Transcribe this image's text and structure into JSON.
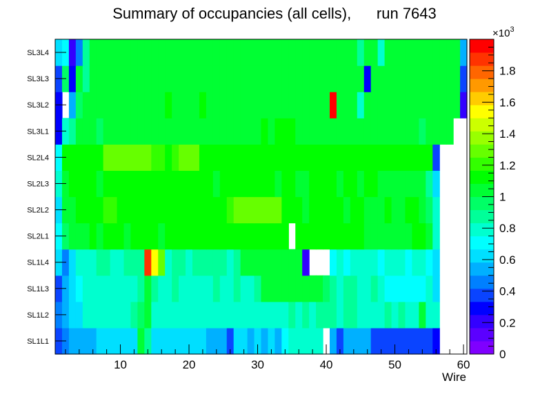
{
  "chart_data": {
    "type": "heatmap",
    "title": "Summary of occupancies (all cells),      run 7643",
    "xlabel": "Wire",
    "ylabel": "",
    "xlim": [
      0.5,
      60.5
    ],
    "x_ticks": [
      "10",
      "20",
      "30",
      "40",
      "50",
      "60"
    ],
    "layers": [
      "SL1L1",
      "SL1L2",
      "SL1L3",
      "SL1L4",
      "SL2L1",
      "SL2L2",
      "SL2L3",
      "SL2L4",
      "SL3L1",
      "SL3L2",
      "SL3L3",
      "SL3L4"
    ],
    "z_range": [
      0,
      2000
    ],
    "z_multiplier_label": "×10",
    "z_multiplier_exp": "3",
    "z_tick_labels": [
      "0",
      "0.2",
      "0.4",
      "0.6",
      "0.8",
      "1",
      "1.2",
      "1.4",
      "1.6",
      "1.8"
    ],
    "palette": [
      "#7f00ff",
      "#5b00ff",
      "#3300ff",
      "#0000ff",
      "#0a44ff",
      "#0080ff",
      "#00b0ff",
      "#00dfff",
      "#00ffff",
      "#00ffcf",
      "#00ff99",
      "#00ff66",
      "#00ff33",
      "#00ff00",
      "#33ff00",
      "#66ff00",
      "#99ff00",
      "#ccff00",
      "#ffff00",
      "#ffcc00",
      "#ff9900",
      "#ff6600",
      "#ff3300",
      "#ff0000"
    ],
    "z": [
      [
        350,
        420,
        500,
        500,
        500,
        500,
        600,
        600,
        600,
        600,
        600,
        600,
        1000,
        900,
        600,
        600,
        600,
        600,
        600,
        600,
        600,
        600,
        500,
        500,
        500,
        400,
        600,
        600,
        500,
        600,
        500,
        600,
        500,
        700,
        800,
        800,
        800,
        800,
        800,
        0,
        500,
        400,
        500,
        500,
        500,
        500,
        400,
        400,
        400,
        400,
        400,
        400,
        400,
        400,
        400,
        300,
        0,
        0,
        0,
        0
      ],
      [
        450,
        550,
        650,
        650,
        750,
        750,
        750,
        800,
        800,
        800,
        800,
        850,
        950,
        1050,
        800,
        750,
        800,
        800,
        800,
        800,
        800,
        800,
        800,
        800,
        800,
        800,
        800,
        800,
        800,
        800,
        800,
        800,
        800,
        800,
        900,
        800,
        900,
        800,
        850,
        900,
        850,
        800,
        850,
        850,
        800,
        800,
        750,
        800,
        850,
        800,
        850,
        800,
        800,
        1000,
        800,
        800,
        0,
        0,
        0,
        0
      ],
      [
        400,
        550,
        650,
        700,
        800,
        800,
        800,
        800,
        800,
        800,
        800,
        800,
        900,
        1000,
        850,
        800,
        800,
        850,
        800,
        800,
        800,
        750,
        800,
        850,
        800,
        800,
        850,
        800,
        800,
        850,
        1000,
        1000,
        1000,
        1000,
        1000,
        1000,
        1000,
        1000,
        1000,
        950,
        850,
        800,
        850,
        900,
        800,
        800,
        850,
        800,
        700,
        700,
        700,
        700,
        700,
        700,
        750,
        600,
        0,
        0,
        0,
        0
      ],
      [
        650,
        450,
        600,
        800,
        800,
        800,
        850,
        850,
        800,
        800,
        850,
        900,
        850,
        1900,
        1500,
        1250,
        800,
        900,
        850,
        800,
        850,
        850,
        900,
        850,
        850,
        800,
        850,
        1000,
        1050,
        1050,
        1050,
        1050,
        1050,
        1050,
        1050,
        1050,
        200,
        0,
        0,
        0,
        700,
        750,
        700,
        800,
        800,
        750,
        800,
        700,
        800,
        750,
        800,
        700,
        800,
        750,
        700,
        650,
        0,
        0,
        0,
        0
      ],
      [
        700,
        950,
        1050,
        1050,
        1050,
        1100,
        1050,
        1150,
        1150,
        1150,
        1050,
        1150,
        1150,
        1150,
        1100,
        1050,
        1150,
        1150,
        1100,
        1150,
        1150,
        1150,
        1150,
        1100,
        1150,
        1150,
        1150,
        1150,
        1150,
        1150,
        1150,
        1150,
        1150,
        1150,
        0,
        1150,
        1150,
        1150,
        1150,
        1150,
        1150,
        1100,
        1150,
        1150,
        1100,
        1050,
        1050,
        1050,
        1050,
        1050,
        1050,
        1050,
        1100,
        1100,
        1050,
        800,
        0,
        0,
        0,
        0
      ],
      [
        600,
        1050,
        1050,
        1100,
        1150,
        1150,
        1150,
        1200,
        1200,
        1150,
        1150,
        1100,
        1100,
        1100,
        1100,
        1100,
        1100,
        1100,
        1100,
        1150,
        1100,
        1100,
        1100,
        1150,
        1100,
        1200,
        1300,
        1250,
        1250,
        1250,
        1250,
        1250,
        1250,
        1150,
        1100,
        1100,
        1050,
        1100,
        1150,
        1150,
        1100,
        1100,
        1050,
        1100,
        1100,
        1050,
        1050,
        1050,
        1100,
        1050,
        1050,
        1100,
        1100,
        1050,
        950,
        750,
        0,
        0,
        0,
        0
      ],
      [
        800,
        1050,
        1100,
        1100,
        1100,
        1100,
        1050,
        1150,
        1150,
        1150,
        1150,
        1100,
        1100,
        1150,
        1100,
        1150,
        1100,
        1100,
        1100,
        1100,
        1100,
        1100,
        1100,
        1050,
        1100,
        1100,
        1150,
        1150,
        1150,
        1100,
        1100,
        1150,
        1050,
        1100,
        1100,
        1050,
        1050,
        1100,
        1100,
        1100,
        1100,
        1050,
        1100,
        1100,
        1050,
        1100,
        1100,
        1050,
        1050,
        1050,
        1050,
        1050,
        1050,
        1050,
        900,
        600,
        0,
        0,
        0,
        0
      ],
      [
        700,
        1100,
        1100,
        1150,
        1150,
        1150,
        1150,
        1250,
        1250,
        1250,
        1250,
        1250,
        1250,
        1250,
        1200,
        1200,
        1150,
        1200,
        1250,
        1250,
        1250,
        1150,
        1150,
        1150,
        1150,
        1150,
        1150,
        1150,
        1150,
        1150,
        1150,
        1150,
        1150,
        1150,
        1150,
        1150,
        1150,
        1150,
        1150,
        1150,
        1150,
        1150,
        1150,
        1150,
        1150,
        1100,
        1150,
        1100,
        1150,
        1150,
        1150,
        1100,
        1150,
        1150,
        1100,
        400,
        0,
        0,
        0,
        0
      ],
      [
        300,
        750,
        900,
        1000,
        1000,
        1000,
        950,
        1000,
        1000,
        1000,
        1000,
        1000,
        1000,
        1000,
        1000,
        1050,
        1000,
        1050,
        1050,
        1050,
        1050,
        1050,
        1000,
        1000,
        1000,
        1000,
        1050,
        1000,
        1050,
        1050,
        1100,
        1050,
        1100,
        1100,
        1100,
        1050,
        1050,
        1050,
        1050,
        1050,
        1050,
        1000,
        1000,
        1000,
        1050,
        1050,
        1000,
        1000,
        1000,
        1050,
        1000,
        1000,
        1050,
        950,
        1000,
        1000,
        1000,
        1000,
        0,
        0
      ],
      [
        300,
        0,
        500,
        950,
        1000,
        1000,
        1050,
        1000,
        1000,
        1000,
        1050,
        1000,
        1050,
        1000,
        1000,
        1000,
        1100,
        1000,
        1000,
        1000,
        1000,
        1100,
        1000,
        1000,
        1000,
        1050,
        1000,
        1000,
        1000,
        1000,
        1000,
        1000,
        1050,
        1000,
        1000,
        1000,
        1000,
        1000,
        1000,
        1000,
        1950,
        1000,
        1000,
        1000,
        800,
        1000,
        1000,
        1000,
        1000,
        1050,
        1000,
        1000,
        1000,
        1000,
        1000,
        1000,
        1000,
        1000,
        1000,
        200
      ],
      [
        400,
        950,
        300,
        1050,
        900,
        1000,
        1050,
        1000,
        1000,
        1000,
        1000,
        1050,
        1000,
        1000,
        1000,
        1000,
        1000,
        1000,
        1000,
        1000,
        1050,
        1000,
        1050,
        1000,
        1000,
        1000,
        1000,
        1000,
        1000,
        1000,
        1050,
        1000,
        1000,
        1000,
        1000,
        1000,
        1000,
        1000,
        1000,
        1000,
        1000,
        1050,
        1000,
        1000,
        1000,
        300,
        1000,
        1000,
        1000,
        1000,
        1000,
        1050,
        1000,
        1000,
        1000,
        1000,
        1000,
        1000,
        1000,
        400
      ],
      [
        600,
        700,
        200,
        450,
        900,
        1050,
        1000,
        1050,
        1050,
        1050,
        1050,
        1050,
        1050,
        1000,
        1050,
        1050,
        1050,
        1050,
        1050,
        1050,
        1050,
        1050,
        1050,
        1050,
        1050,
        1050,
        1050,
        1050,
        1050,
        1050,
        1050,
        1050,
        1050,
        1050,
        1050,
        1050,
        1050,
        1050,
        1050,
        1050,
        1050,
        1050,
        1050,
        1000,
        900,
        1050,
        1050,
        800,
        1050,
        1050,
        1050,
        1050,
        1050,
        1050,
        1050,
        1050,
        1050,
        1050,
        1050,
        500
      ]
    ]
  }
}
